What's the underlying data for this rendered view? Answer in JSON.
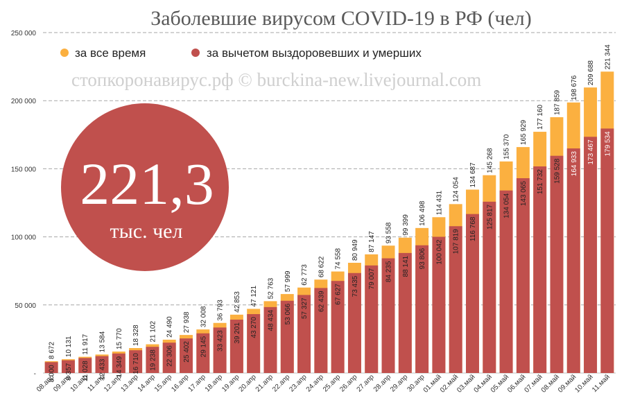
{
  "colors": {
    "total": "#fbb040",
    "active": "#c0504d",
    "badge": "#c0504d",
    "grid": "#a6a6a6"
  },
  "chart_data": {
    "type": "bar",
    "title": "Заболевшие вирусом COVID-19 в РФ (чел)",
    "watermark": "стопкоронавирус.рф © burckina-new.livejournal.com",
    "badge": {
      "value": "221,3",
      "unit": "тыс. чел"
    },
    "ylim": [
      0,
      250000
    ],
    "yticks": [
      {
        "value": 0,
        "label": "-"
      },
      {
        "value": 50000,
        "label": "50 000"
      },
      {
        "value": 100000,
        "label": "100 000"
      },
      {
        "value": 150000,
        "label": "150 000"
      },
      {
        "value": 200000,
        "label": "200 000"
      },
      {
        "value": 250000,
        "label": "250 000"
      }
    ],
    "legend_position": "top-left",
    "categories": [
      "08.апр",
      "09.апр",
      "10.апр",
      "11.апр",
      "12.апр",
      "13.апр",
      "14.апр",
      "15.апр",
      "16.апр",
      "17.апр",
      "18.апр",
      "19.апр",
      "20.апр",
      "21.апр",
      "22.апр",
      "23.апр",
      "24.апр",
      "25.апр",
      "26.апр",
      "27.апр",
      "28.апр",
      "29.апр",
      "30.апр",
      "01.май",
      "02.май",
      "03.май",
      "04.май",
      "05.май",
      "06.май",
      "07.май",
      "08.май",
      "09.май",
      "10.май",
      "11.май"
    ],
    "series": [
      {
        "name": "за все время",
        "color": "#fbb040",
        "values": [
          8672,
          10131,
          11917,
          13584,
          15770,
          18328,
          21102,
          24490,
          27938,
          32008,
          36793,
          42853,
          47121,
          52763,
          57999,
          62773,
          68622,
          74558,
          80949,
          87147,
          93558,
          99399,
          106498,
          114431,
          124054,
          134687,
          145268,
          155370,
          165929,
          177160,
          187859,
          198676,
          209688,
          221344
        ],
        "labels": [
          "8 672",
          "10 131",
          "11 917",
          "13 584",
          "15 770",
          "18 328",
          "21 102",
          "24 490",
          "27 938",
          "32 008",
          "36 793",
          "42 853",
          "47 121",
          "52 763",
          "57 999",
          "62 773",
          "68 622",
          "74 558",
          "80 949",
          "87 147",
          "93 558",
          "99 399",
          "106 498",
          "114 431",
          "124 054",
          "134 687",
          "145 268",
          "155 370",
          "165 929",
          "177 160",
          "187 859",
          "198 676",
          "209 688",
          "221 344"
        ]
      },
      {
        "name": "за вычетом выздоровевших и умерших",
        "color": "#c0504d",
        "values": [
          8000,
          9357,
          11028,
          12433,
          14349,
          16710,
          19238,
          22306,
          25402,
          29145,
          33423,
          39201,
          43270,
          48434,
          53066,
          57327,
          62439,
          67627,
          73435,
          79007,
          84235,
          88141,
          93806,
          100042,
          107819,
          116768,
          125817,
          134054,
          143065,
          151732,
          159528,
          164933,
          173467,
          179534
        ],
        "labels": [
          "8 000",
          "9 357",
          "11 028",
          "12 433",
          "14 349",
          "16 710",
          "19 238",
          "22 306",
          "25 402",
          "29 145",
          "33 423",
          "39 201",
          "43 270",
          "48 434",
          "53 066",
          "57 327",
          "62 439",
          "67 627",
          "73 435",
          "79 007",
          "84 235",
          "88 141",
          "93 806",
          "100 042",
          "107 819",
          "116 768",
          "125 817",
          "134 054",
          "143 065",
          "151 732",
          "159 528",
          "164 933",
          "173 467",
          "179 534"
        ]
      }
    ]
  }
}
